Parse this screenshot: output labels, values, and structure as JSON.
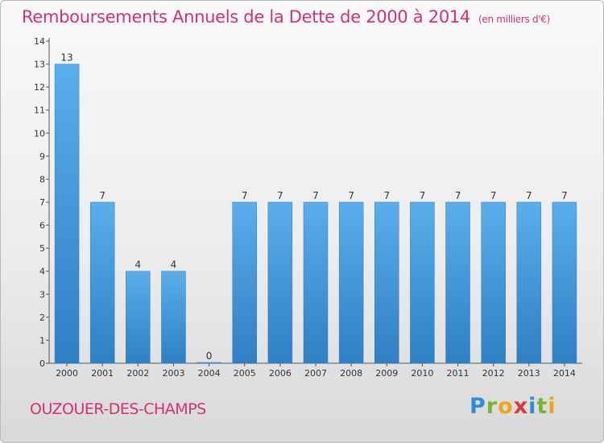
{
  "chart_data": {
    "type": "bar",
    "title": "Remboursements Annuels de la Dette de 2000 à 2014",
    "unit_note": "(en milliers d'€)",
    "categories": [
      "2000",
      "2001",
      "2002",
      "2003",
      "2004",
      "2005",
      "2006",
      "2007",
      "2008",
      "2009",
      "2010",
      "2011",
      "2012",
      "2013",
      "2014"
    ],
    "values": [
      13,
      7,
      4,
      4,
      0,
      7,
      7,
      7,
      7,
      7,
      7,
      7,
      7,
      7,
      7
    ],
    "ylim": [
      0,
      14
    ],
    "yticks": [
      0,
      1,
      2,
      3,
      4,
      5,
      6,
      7,
      8,
      9,
      10,
      11,
      12,
      13,
      14
    ],
    "xlabel": "",
    "ylabel": "",
    "grid": false,
    "bar_color": "#4a9fe0"
  },
  "footer": {
    "city": "OUZOUER-DES-CHAMPS",
    "logo_text": "Proxiti"
  }
}
